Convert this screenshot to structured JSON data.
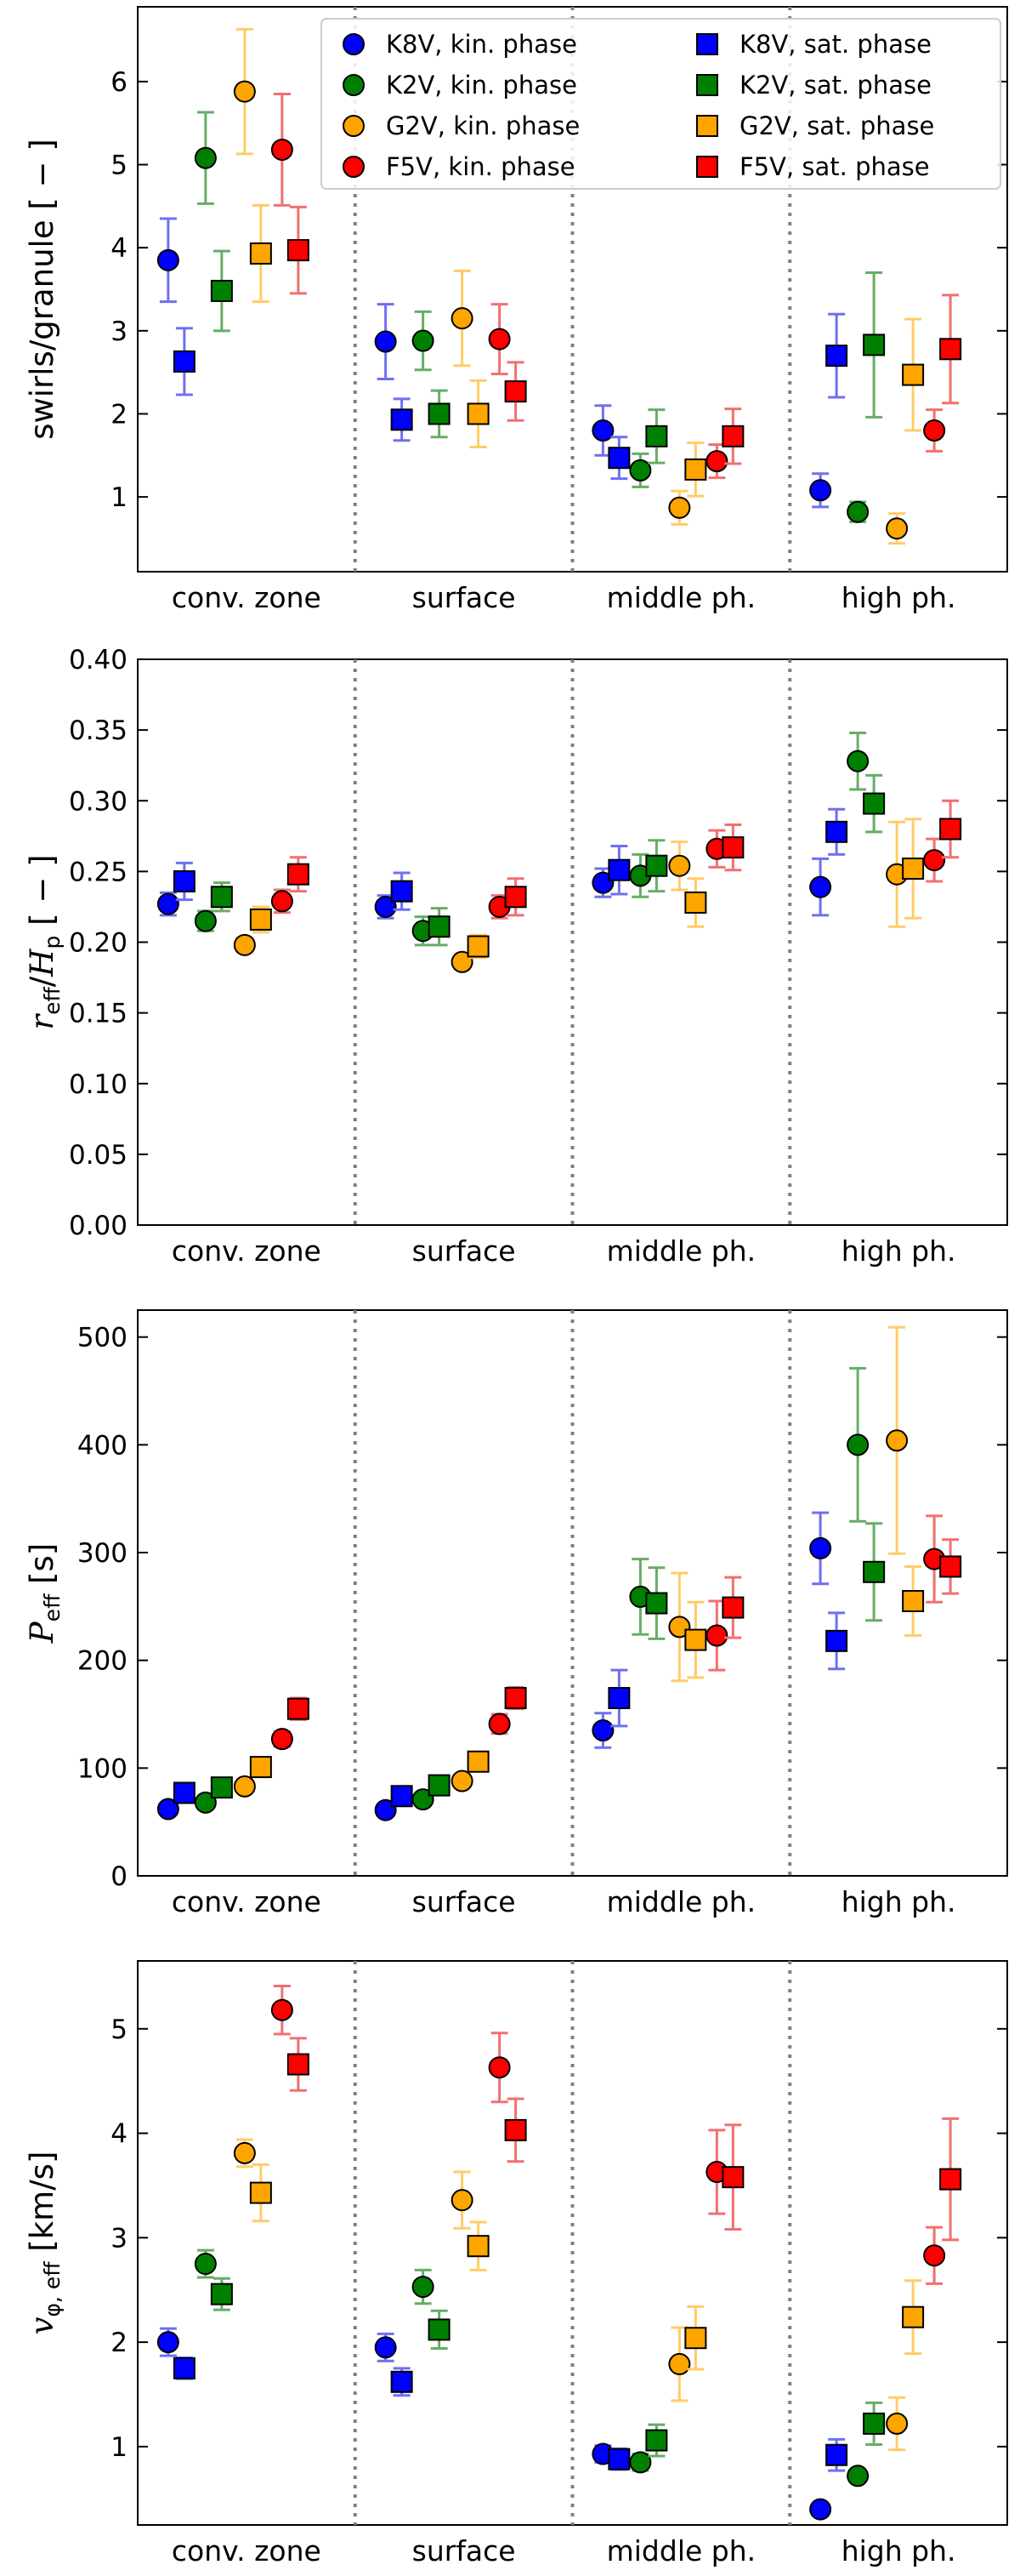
{
  "figure": {
    "categories": [
      "conv. zone",
      "surface",
      "middle ph.",
      "high ph."
    ]
  },
  "legend": {
    "location": "upper right of top panel",
    "ncol": 2,
    "entries": [
      {
        "label": "K8V, kin. phase",
        "marker": "circle",
        "color": "#0000ff"
      },
      {
        "label": "K2V, kin. phase",
        "marker": "circle",
        "color": "#008000"
      },
      {
        "label": "G2V, kin. phase",
        "marker": "circle",
        "color": "#ffa500"
      },
      {
        "label": "F5V, kin. phase",
        "marker": "circle",
        "color": "#ff0000"
      },
      {
        "label": "K8V, sat. phase",
        "marker": "square",
        "color": "#0000ff"
      },
      {
        "label": "K2V, sat. phase",
        "marker": "square",
        "color": "#008000"
      },
      {
        "label": "G2V, sat. phase",
        "marker": "square",
        "color": "#ffa500"
      },
      {
        "label": "F5V, sat. phase",
        "marker": "square",
        "color": "#ff0000"
      }
    ]
  },
  "colors": {
    "K8V": "#0000ff",
    "K2V": "#008000",
    "G2V": "#ffa500",
    "F5V": "#ff0000",
    "K8V_err": "#6f6ff2",
    "K2V_err": "#66ad66",
    "G2V_err": "#ffcc66",
    "F5V_err": "#f26f6f",
    "separator": "#808080"
  },
  "chart_data": [
    {
      "type": "scatter",
      "ylabel": "swirls/granule  [ − ]",
      "ylim": [
        0.1,
        6.9
      ],
      "yticks": [
        1,
        2,
        3,
        4,
        5,
        6
      ],
      "ytick_labels": [
        "1",
        "2",
        "3",
        "4",
        "5",
        "6"
      ],
      "categories": [
        "conv. zone",
        "surface",
        "middle ph.",
        "high ph."
      ],
      "legend": true,
      "series": [
        {
          "name": "K8V, kin. phase",
          "star": "K8V",
          "marker": "circle",
          "values": [
            3.85,
            2.87,
            1.8,
            1.08
          ],
          "err": [
            0.5,
            0.45,
            0.3,
            0.2
          ]
        },
        {
          "name": "K8V, sat. phase",
          "star": "K8V",
          "marker": "square",
          "values": [
            2.63,
            1.93,
            1.47,
            2.7
          ],
          "err": [
            0.4,
            0.25,
            0.25,
            0.5
          ]
        },
        {
          "name": "K2V, kin. phase",
          "star": "K2V",
          "marker": "circle",
          "values": [
            5.08,
            2.88,
            1.32,
            0.82
          ],
          "err": [
            0.55,
            0.35,
            0.2,
            0.12
          ]
        },
        {
          "name": "K2V, sat. phase",
          "star": "K2V",
          "marker": "square",
          "values": [
            3.48,
            2.0,
            1.73,
            2.83
          ],
          "err": [
            0.48,
            0.28,
            0.32,
            0.87
          ]
        },
        {
          "name": "G2V, kin. phase",
          "star": "G2V",
          "marker": "circle",
          "values": [
            5.88,
            3.15,
            0.87,
            0.62
          ],
          "err": [
            0.75,
            0.57,
            0.2,
            0.18
          ]
        },
        {
          "name": "G2V, sat. phase",
          "star": "G2V",
          "marker": "square",
          "values": [
            3.93,
            2.0,
            1.33,
            2.47
          ],
          "err": [
            0.58,
            0.4,
            0.32,
            0.67
          ]
        },
        {
          "name": "F5V, kin. phase",
          "star": "F5V",
          "marker": "circle",
          "values": [
            5.18,
            2.9,
            1.43,
            1.8
          ],
          "err": [
            0.67,
            0.42,
            0.2,
            0.25
          ]
        },
        {
          "name": "F5V, sat. phase",
          "star": "F5V",
          "marker": "square",
          "values": [
            3.97,
            2.27,
            1.73,
            2.78
          ],
          "err": [
            0.52,
            0.35,
            0.33,
            0.65
          ]
        }
      ]
    },
    {
      "type": "scatter",
      "ylabel": "r_eff / H_p  [ − ]",
      "ylim": [
        0.0,
        0.4
      ],
      "yticks": [
        0.0,
        0.05,
        0.1,
        0.15,
        0.2,
        0.25,
        0.3,
        0.35,
        0.4
      ],
      "ytick_labels": [
        "0.00",
        "0.05",
        "0.10",
        "0.15",
        "0.20",
        "0.25",
        "0.30",
        "0.35",
        "0.40"
      ],
      "categories": [
        "conv. zone",
        "surface",
        "middle ph.",
        "high ph."
      ],
      "legend": false,
      "series": [
        {
          "name": "K8V, kin. phase",
          "star": "K8V",
          "marker": "circle",
          "values": [
            0.227,
            0.225,
            0.242,
            0.239
          ],
          "err": [
            0.008,
            0.008,
            0.01,
            0.02
          ]
        },
        {
          "name": "K8V, sat. phase",
          "star": "K8V",
          "marker": "square",
          "values": [
            0.243,
            0.236,
            0.251,
            0.278
          ],
          "err": [
            0.013,
            0.013,
            0.017,
            0.016
          ]
        },
        {
          "name": "K2V, kin. phase",
          "star": "K2V",
          "marker": "circle",
          "values": [
            0.215,
            0.208,
            0.247,
            0.328
          ],
          "err": [
            0.007,
            0.01,
            0.015,
            0.02
          ]
        },
        {
          "name": "K2V, sat. phase",
          "star": "K2V",
          "marker": "square",
          "values": [
            0.232,
            0.211,
            0.254,
            0.298
          ],
          "err": [
            0.01,
            0.013,
            0.018,
            0.02
          ]
        },
        {
          "name": "G2V, kin. phase",
          "star": "G2V",
          "marker": "circle",
          "values": [
            0.198,
            0.186,
            0.254,
            0.248
          ],
          "err": [
            0.005,
            0.005,
            0.017,
            0.037
          ]
        },
        {
          "name": "G2V, sat. phase",
          "star": "G2V",
          "marker": "square",
          "values": [
            0.216,
            0.197,
            0.228,
            0.252
          ],
          "err": [
            0.009,
            0.008,
            0.017,
            0.035
          ]
        },
        {
          "name": "F5V, kin. phase",
          "star": "F5V",
          "marker": "circle",
          "values": [
            0.229,
            0.225,
            0.266,
            0.258
          ],
          "err": [
            0.008,
            0.008,
            0.013,
            0.015
          ]
        },
        {
          "name": "F5V, sat. phase",
          "star": "F5V",
          "marker": "square",
          "values": [
            0.248,
            0.232,
            0.267,
            0.28
          ],
          "err": [
            0.012,
            0.013,
            0.016,
            0.02
          ]
        }
      ]
    },
    {
      "type": "scatter",
      "ylabel": "P_eff  [s]",
      "ylim": [
        0,
        525
      ],
      "yticks": [
        0,
        100,
        200,
        300,
        400,
        500
      ],
      "ytick_labels": [
        "0",
        "100",
        "200",
        "300",
        "400",
        "500"
      ],
      "categories": [
        "conv. zone",
        "surface",
        "middle ph.",
        "high ph."
      ],
      "legend": false,
      "series": [
        {
          "name": "K8V, kin. phase",
          "star": "K8V",
          "marker": "circle",
          "values": [
            62,
            61,
            135,
            304
          ],
          "err": [
            4,
            4,
            16,
            33
          ]
        },
        {
          "name": "K8V, sat. phase",
          "star": "K8V",
          "marker": "square",
          "values": [
            77,
            74,
            165,
            218
          ],
          "err": [
            4,
            4,
            26,
            26
          ]
        },
        {
          "name": "K2V, kin. phase",
          "star": "K2V",
          "marker": "circle",
          "values": [
            68,
            71,
            259,
            400
          ],
          "err": [
            4,
            4,
            35,
            71
          ]
        },
        {
          "name": "K2V, sat. phase",
          "star": "K2V",
          "marker": "square",
          "values": [
            82,
            84,
            253,
            282
          ],
          "err": [
            5,
            5,
            33,
            45
          ]
        },
        {
          "name": "G2V, kin. phase",
          "star": "G2V",
          "marker": "circle",
          "values": [
            83,
            88,
            231,
            404
          ],
          "err": [
            5,
            6,
            50,
            105
          ]
        },
        {
          "name": "G2V, sat. phase",
          "star": "G2V",
          "marker": "square",
          "values": [
            101,
            106,
            219,
            255
          ],
          "err": [
            6,
            7,
            35,
            32
          ]
        },
        {
          "name": "F5V, kin. phase",
          "star": "F5V",
          "marker": "circle",
          "values": [
            127,
            141,
            223,
            294
          ],
          "err": [
            7,
            9,
            32,
            40
          ]
        },
        {
          "name": "F5V, sat. phase",
          "star": "F5V",
          "marker": "square",
          "values": [
            155,
            165,
            249,
            287
          ],
          "err": [
            10,
            10,
            28,
            25
          ]
        }
      ]
    },
    {
      "type": "scatter",
      "ylabel": "v_φ, eff  [km/s]",
      "ylim": [
        0.25,
        5.65
      ],
      "yticks": [
        1,
        2,
        3,
        4,
        5
      ],
      "ytick_labels": [
        "1",
        "2",
        "3",
        "4",
        "5"
      ],
      "categories": [
        "conv. zone",
        "surface",
        "middle ph.",
        "high ph."
      ],
      "legend": false,
      "series": [
        {
          "name": "K8V, kin. phase",
          "star": "K8V",
          "marker": "circle",
          "values": [
            2.0,
            1.95,
            0.93,
            0.4
          ],
          "err": [
            0.13,
            0.13,
            0.08,
            0.03
          ]
        },
        {
          "name": "K8V, sat. phase",
          "star": "K8V",
          "marker": "square",
          "values": [
            1.75,
            1.62,
            0.88,
            0.92
          ],
          "err": [
            0.1,
            0.13,
            0.1,
            0.15
          ]
        },
        {
          "name": "K2V, kin. phase",
          "star": "K2V",
          "marker": "circle",
          "values": [
            2.75,
            2.53,
            0.85,
            0.72
          ],
          "err": [
            0.13,
            0.16,
            0.08,
            0.05
          ]
        },
        {
          "name": "K2V, sat. phase",
          "star": "K2V",
          "marker": "square",
          "values": [
            2.46,
            2.12,
            1.06,
            1.22
          ],
          "err": [
            0.15,
            0.18,
            0.15,
            0.2
          ]
        },
        {
          "name": "G2V, kin. phase",
          "star": "G2V",
          "marker": "circle",
          "values": [
            3.81,
            3.36,
            1.79,
            1.22
          ],
          "err": [
            0.13,
            0.27,
            0.35,
            0.25
          ]
        },
        {
          "name": "G2V, sat. phase",
          "star": "G2V",
          "marker": "square",
          "values": [
            3.43,
            2.92,
            2.04,
            2.24
          ],
          "err": [
            0.27,
            0.23,
            0.3,
            0.35
          ]
        },
        {
          "name": "F5V, kin. phase",
          "star": "F5V",
          "marker": "circle",
          "values": [
            5.18,
            4.63,
            3.63,
            2.83
          ],
          "err": [
            0.23,
            0.33,
            0.4,
            0.27
          ]
        },
        {
          "name": "F5V, sat. phase",
          "star": "F5V",
          "marker": "square",
          "values": [
            4.66,
            4.03,
            3.58,
            3.56
          ],
          "err": [
            0.25,
            0.3,
            0.5,
            0.58
          ]
        }
      ]
    }
  ]
}
